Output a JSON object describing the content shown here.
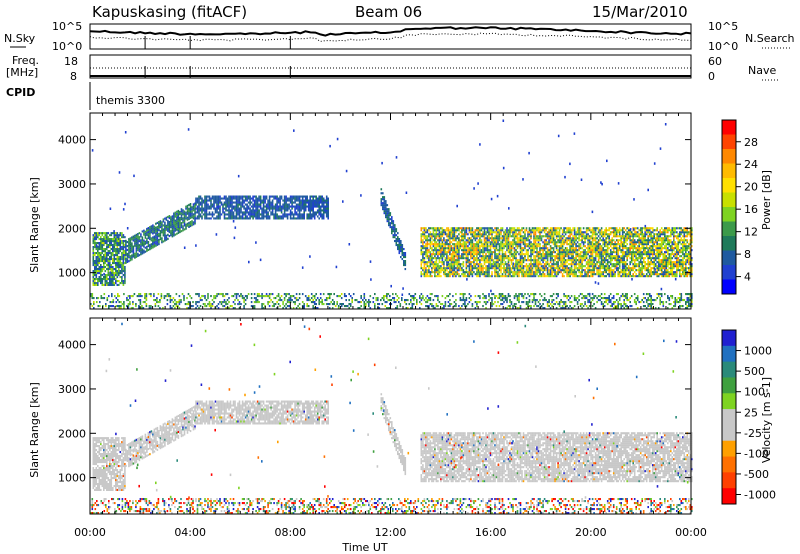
{
  "header": {
    "station": "Kapuskasing (fitACF)",
    "beam": "Beam 06",
    "date": "15/Mar/2010"
  },
  "strips": {
    "nsky_label": "N.Sky",
    "nsky_ticks": [
      "10^5",
      "10^0"
    ],
    "nsearch_label": "N.Search",
    "nsearch_ticks": [
      "10^5",
      "10^0"
    ],
    "freq_label": "Freq.",
    "freq_unit": "[MHz]",
    "freq_ticks": [
      "18",
      "8"
    ],
    "nave_label": "Nave",
    "nave_ticks": [
      "60",
      "0"
    ],
    "cpid_label": "CPID",
    "cpid_value": "themis 3300"
  },
  "axes": {
    "ylabel": "Slant Range [km]",
    "yticks": [
      "4000",
      "3000",
      "2000",
      "1000"
    ],
    "xticks": [
      "00:00",
      "04:00",
      "08:00",
      "12:00",
      "16:00",
      "20:00",
      "00:00"
    ],
    "xlabel": "Time UT"
  },
  "colorbars": {
    "power_label": "Power [dB]",
    "power_ticks": [
      "28",
      "24",
      "20",
      "16",
      "12",
      "8",
      "4"
    ],
    "power_colors": [
      "#ff0000",
      "#ff4400",
      "#ff8800",
      "#ffbb00",
      "#ffe000",
      "#c8e000",
      "#7ed321",
      "#3c9a4a",
      "#1f7a5a",
      "#1f5aa0",
      "#2040d0",
      "#0000ff"
    ],
    "velocity_label": "Velocity [m s-1]",
    "velocity_ticks": [
      "1000",
      "500",
      "100",
      "25",
      "-25",
      "-100",
      "-500",
      "-1000"
    ],
    "velocity_colors": [
      "#2020d0",
      "#2070c0",
      "#2a8a7a",
      "#3fa03f",
      "#7ed321",
      "#c8c8c8",
      "#c8c8c8",
      "#ffa000",
      "#ff7000",
      "#ff4000",
      "#ff0000"
    ]
  },
  "chart_data": [
    {
      "type": "heatmap",
      "title": "Power [dB]",
      "xlabel": "Time UT",
      "ylabel": "Slant Range [km]",
      "xlim": [
        "00:00",
        "24:00"
      ],
      "ylim": [
        180,
        4600
      ],
      "colorbar": "Power [dB]",
      "colorbar_range": [
        0,
        30
      ],
      "regions": [
        {
          "t_start": 0.1,
          "t_end": 1.4,
          "range_min": 700,
          "range_max": 1900,
          "power_db": [
            4,
            16
          ]
        },
        {
          "t_start": 1.4,
          "t_end": 4.2,
          "range_min": 1200,
          "range_max": 2600,
          "power_db": [
            4,
            12
          ]
        },
        {
          "t_start": 4.2,
          "t_end": 9.5,
          "range_min": 2200,
          "range_max": 2700,
          "power_db": [
            4,
            8
          ]
        },
        {
          "t_start": 11.6,
          "t_end": 12.6,
          "range_min": 1300,
          "range_max": 2900,
          "power_db": [
            4,
            10
          ]
        },
        {
          "t_start": 13.2,
          "t_end": 24.0,
          "range_min": 900,
          "range_max": 2000,
          "power_db": [
            4,
            24
          ]
        },
        {
          "t_start": 0.0,
          "t_end": 24.0,
          "range_min": 180,
          "range_max": 500,
          "power_db": [
            4,
            16
          ]
        }
      ]
    },
    {
      "type": "heatmap",
      "title": "Velocity [m s-1]",
      "xlabel": "Time UT",
      "ylabel": "Slant Range [km]",
      "xlim": [
        "00:00",
        "24:00"
      ],
      "ylim": [
        180,
        4600
      ],
      "colorbar": "Velocity [m s-1]",
      "colorbar_range": [
        -1000,
        1000
      ],
      "regions": [
        {
          "t_start": 0.1,
          "t_end": 1.4,
          "range_min": 700,
          "range_max": 1900,
          "velocity": [
            -100,
            25
          ]
        },
        {
          "t_start": 1.4,
          "t_end": 4.2,
          "range_min": 1200,
          "range_max": 2600,
          "velocity": [
            -25,
            25
          ]
        },
        {
          "t_start": 4.2,
          "t_end": 9.5,
          "range_min": 2200,
          "range_max": 2700,
          "velocity": [
            -25,
            25
          ]
        },
        {
          "t_start": 11.6,
          "t_end": 12.6,
          "range_min": 1300,
          "range_max": 2900,
          "velocity": [
            -25,
            25
          ]
        },
        {
          "t_start": 13.2,
          "t_end": 24.0,
          "range_min": 900,
          "range_max": 2000,
          "velocity": [
            -25,
            25
          ]
        },
        {
          "t_start": 0.0,
          "t_end": 24.0,
          "range_min": 180,
          "range_max": 500,
          "velocity": [
            -1000,
            1000
          ]
        }
      ]
    }
  ]
}
